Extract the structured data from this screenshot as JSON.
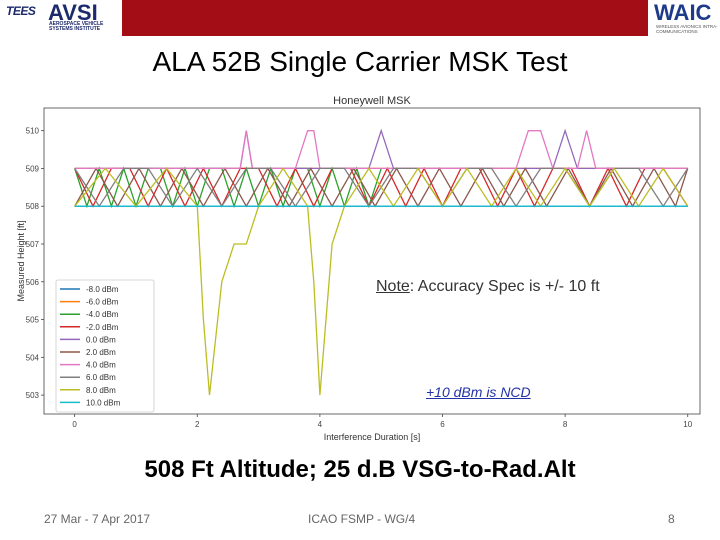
{
  "header": {
    "left_logo_text": "TEES",
    "avsi_logo_text": "AVSI",
    "avsi_subtext": "AEROSPACE VEHICLE SYSTEMS INSTITUTE",
    "waic_logo_text": "WAIC",
    "waic_subtext": "WIRELESS AVIONICS INTRA-COMMUNICATIONS",
    "band_color": "#a30e16"
  },
  "slide": {
    "title": "ALA 52B Single Carrier MSK Test",
    "subtitle": "508 Ft Altitude; 25 d.B VSG-to-Rad.Alt",
    "note_prefix": "Note",
    "note_text": ": Accuracy Spec is +/- 10 ft",
    "ncd_text": "+10 dBm is NCD"
  },
  "footer": {
    "date": "27 Mar - 7 Apr 2017",
    "org": "ICAO FSMP - WG/4",
    "page": "8"
  },
  "chart_data": {
    "type": "line",
    "title": "Honeywell MSK",
    "xlabel": "Interference Duration [s]",
    "ylabel": "Measured Height [ft]",
    "xlim": [
      -0.5,
      10.2
    ],
    "ylim": [
      502.5,
      510.6
    ],
    "xticks": [
      0,
      2,
      4,
      6,
      8,
      10
    ],
    "yticks": [
      503,
      504,
      505,
      506,
      507,
      508,
      509,
      510
    ],
    "legend_position": "lower-left",
    "grid": false,
    "series": [
      {
        "name": "-8.0 dBm",
        "color": "#1f77b4",
        "x": [
          0,
          10
        ],
        "y": [
          508,
          508
        ]
      },
      {
        "name": "-6.0 dBm",
        "color": "#ff7f0e",
        "x": [
          0,
          10
        ],
        "y": [
          509,
          509
        ]
      },
      {
        "name": "-4.0 dBm",
        "color": "#2ca02c",
        "x": [
          0,
          0.2,
          0.4,
          0.6,
          0.8,
          1.0,
          1.2,
          1.4,
          1.6,
          1.8,
          2.0,
          2.2,
          2.4,
          2.6,
          2.8,
          3.0,
          3.2,
          3.4,
          3.6,
          3.8,
          4.0,
          4.2,
          4.4,
          4.6,
          4.8,
          5.0
        ],
        "y": [
          509,
          508,
          509,
          508,
          509,
          508,
          509,
          509,
          508,
          509,
          508,
          509,
          509,
          508,
          509,
          508,
          509,
          508,
          509,
          509,
          508,
          509,
          508,
          509,
          508,
          509
        ]
      },
      {
        "name": "-2.0 dBm",
        "color": "#d62728",
        "x": [
          0,
          0.3,
          0.6,
          0.9,
          1.2,
          1.5,
          1.8,
          2.1,
          2.4,
          2.7,
          3.0,
          3.3,
          3.6,
          3.9,
          4.2,
          4.5,
          4.8,
          5.1,
          5.4,
          5.7,
          6.0,
          6.3,
          6.6,
          6.9,
          7.2,
          7.5,
          7.8,
          8.1,
          8.4,
          8.7,
          9.0,
          9.3,
          9.6,
          10.0
        ],
        "y": [
          509,
          508,
          509,
          509,
          508,
          509,
          508,
          509,
          508,
          509,
          509,
          508,
          509,
          508,
          509,
          509,
          508,
          509,
          508,
          509,
          508,
          509,
          509,
          508,
          509,
          508,
          509,
          509,
          508,
          509,
          508,
          509,
          509,
          508
        ]
      },
      {
        "name": "0.0 dBm",
        "color": "#9467bd",
        "x": [
          0,
          0.5,
          1.0,
          1.5,
          2.0,
          2.5,
          2.7,
          2.8,
          2.9,
          3.2,
          3.6,
          4.0,
          4.5,
          4.8,
          5.0,
          5.2,
          5.6,
          6.0,
          6.5,
          7.0,
          7.5,
          7.8,
          8.0,
          8.2,
          8.5,
          9.0,
          9.5,
          10.0
        ],
        "y": [
          509,
          509,
          509,
          509,
          509,
          509,
          509,
          510,
          509,
          509,
          509,
          509,
          509,
          509,
          510,
          509,
          509,
          509,
          509,
          509,
          509,
          509,
          510,
          509,
          509,
          509,
          509,
          509
        ]
      },
      {
        "name": "2.0 dBm",
        "color": "#8c564b",
        "x": [
          0,
          0.35,
          0.7,
          1.05,
          1.4,
          1.75,
          2.1,
          2.45,
          2.8,
          3.15,
          3.5,
          3.85,
          4.2,
          4.55,
          4.9,
          5.25,
          5.6,
          5.95,
          6.3,
          6.65,
          7.0,
          7.35,
          7.7,
          8.05,
          8.4,
          8.75,
          9.1,
          9.45,
          9.8,
          10.0
        ],
        "y": [
          508,
          509,
          508,
          509,
          508,
          509,
          508,
          509,
          508,
          509,
          508,
          509,
          508,
          509,
          508,
          509,
          508,
          509,
          508,
          509,
          508,
          509,
          508,
          509,
          508,
          509,
          508,
          509,
          508,
          509
        ]
      },
      {
        "name": "4.0 dBm",
        "color": "#e377c2",
        "x": [
          0,
          1.0,
          2.0,
          2.7,
          2.8,
          2.9,
          3.6,
          3.8,
          3.9,
          4.0,
          5.0,
          6.0,
          7.2,
          7.4,
          7.6,
          7.8,
          8.2,
          8.35,
          8.5,
          9.0,
          10.0
        ],
        "y": [
          509,
          509,
          509,
          509,
          510,
          509,
          509,
          510,
          510,
          509,
          509,
          509,
          509,
          510,
          510,
          509,
          509,
          510,
          509,
          509,
          509
        ]
      },
      {
        "name": "6.0 dBm",
        "color": "#7f7f7f",
        "x": [
          0,
          0.4,
          0.8,
          1.2,
          1.6,
          2.0,
          2.4,
          2.8,
          3.2,
          3.6,
          4.0,
          4.4,
          4.8,
          5.2,
          5.6,
          6.0,
          6.4,
          6.8,
          7.2,
          7.6,
          8.0,
          8.4,
          8.8,
          9.2,
          9.6,
          10.0
        ],
        "y": [
          509,
          508,
          509,
          509,
          508,
          509,
          508,
          509,
          509,
          508,
          509,
          509,
          508,
          509,
          509,
          508,
          509,
          509,
          508,
          509,
          509,
          508,
          509,
          509,
          508,
          509
        ]
      },
      {
        "name": "8.0 dBm",
        "color": "#bcbd22",
        "x": [
          0,
          0.5,
          1.0,
          1.5,
          2.0,
          2.1,
          2.2,
          2.4,
          2.6,
          2.8,
          3.0,
          3.4,
          3.8,
          3.9,
          4.0,
          4.1,
          4.2,
          4.4,
          4.8,
          5.2,
          5.6,
          6.0,
          6.4,
          6.8,
          7.2,
          7.6,
          8.0,
          8.4,
          8.8,
          9.2,
          9.6,
          10.0
        ],
        "y": [
          508,
          509,
          508,
          509,
          508,
          505,
          503,
          506,
          507,
          507,
          508,
          509,
          508,
          506,
          503,
          505,
          507,
          508,
          509,
          508,
          509,
          508,
          509,
          508,
          509,
          508,
          509,
          508,
          509,
          508,
          509,
          508
        ]
      },
      {
        "name": "10.0 dBm",
        "color": "#17becf",
        "x": [
          0,
          10
        ],
        "y": [
          508,
          508
        ]
      }
    ]
  }
}
